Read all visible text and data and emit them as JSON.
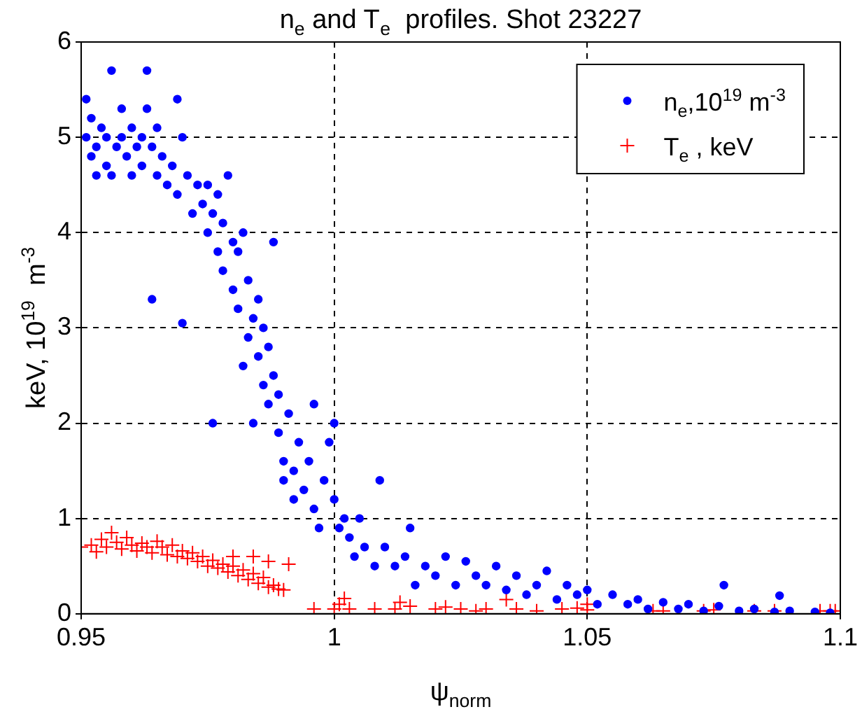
{
  "chart_data": {
    "type": "scatter",
    "title": "n$_{e}$ and T$_{e}$  profiles. Shot 23227",
    "xlabel": "ψ$_{norm}$",
    "ylabel": "keV, 10$^{19}$  m$^{-3}$",
    "xlim": [
      0.95,
      1.1
    ],
    "xticks": [
      0.95,
      1,
      1.05,
      1.1
    ],
    "ylim": [
      0,
      6
    ],
    "yticks": [
      0,
      1,
      2,
      3,
      4,
      5,
      6
    ],
    "grid": true,
    "legend": "top right",
    "series": [
      {
        "name": "n$_{e}$,10$^{19}$ m$^{-3}$",
        "color": "#0000ff",
        "marker": "circle",
        "x": [
          0.951,
          0.951,
          0.952,
          0.952,
          0.953,
          0.953,
          0.954,
          0.955,
          0.955,
          0.956,
          0.956,
          0.957,
          0.958,
          0.958,
          0.959,
          0.96,
          0.96,
          0.961,
          0.962,
          0.962,
          0.963,
          0.963,
          0.964,
          0.964,
          0.965,
          0.965,
          0.966,
          0.967,
          0.968,
          0.969,
          0.969,
          0.97,
          0.97,
          0.971,
          0.972,
          0.973,
          0.974,
          0.975,
          0.975,
          0.976,
          0.976,
          0.977,
          0.977,
          0.978,
          0.978,
          0.979,
          0.98,
          0.98,
          0.981,
          0.981,
          0.982,
          0.982,
          0.983,
          0.983,
          0.984,
          0.984,
          0.985,
          0.985,
          0.986,
          0.986,
          0.987,
          0.987,
          0.988,
          0.988,
          0.989,
          0.989,
          0.99,
          0.99,
          0.991,
          0.992,
          0.992,
          0.993,
          0.994,
          0.995,
          0.996,
          0.996,
          0.997,
          0.998,
          0.999,
          1.0,
          1.0,
          1.001,
          1.002,
          1.003,
          1.004,
          1.005,
          1.006,
          1.008,
          1.009,
          1.01,
          1.012,
          1.014,
          1.015,
          1.016,
          1.018,
          1.02,
          1.022,
          1.024,
          1.026,
          1.028,
          1.03,
          1.032,
          1.034,
          1.036,
          1.038,
          1.04,
          1.042,
          1.044,
          1.046,
          1.048,
          1.05,
          1.052,
          1.055,
          1.058,
          1.06,
          1.062,
          1.065,
          1.068,
          1.07,
          1.073,
          1.076,
          1.077,
          1.08,
          1.083,
          1.087,
          1.088,
          1.09,
          1.095,
          1.098
        ],
        "values": [
          5.4,
          5.0,
          4.8,
          5.2,
          4.6,
          4.9,
          5.1,
          4.7,
          5.0,
          5.7,
          4.6,
          4.9,
          5.3,
          5.0,
          4.8,
          4.6,
          5.1,
          4.9,
          4.7,
          5.0,
          5.7,
          5.3,
          3.3,
          4.9,
          5.1,
          4.6,
          4.8,
          4.5,
          4.7,
          5.4,
          4.4,
          3.05,
          5.0,
          4.6,
          4.2,
          4.5,
          4.3,
          4.0,
          4.5,
          2.0,
          4.2,
          4.4,
          3.8,
          4.1,
          3.6,
          4.6,
          3.9,
          3.4,
          3.8,
          3.2,
          4.0,
          2.6,
          3.5,
          2.9,
          3.1,
          2.0,
          2.7,
          3.3,
          3.0,
          2.4,
          2.2,
          2.8,
          3.9,
          2.5,
          1.9,
          2.3,
          1.4,
          1.6,
          2.1,
          1.5,
          1.2,
          1.8,
          1.3,
          1.6,
          1.1,
          2.2,
          0.9,
          1.4,
          1.8,
          1.2,
          2.0,
          0.9,
          1.0,
          0.8,
          0.6,
          1.0,
          0.7,
          0.5,
          1.4,
          0.7,
          0.5,
          0.6,
          0.9,
          0.3,
          0.5,
          0.4,
          0.6,
          0.3,
          0.55,
          0.4,
          0.3,
          0.5,
          0.25,
          0.4,
          0.2,
          0.3,
          0.45,
          0.15,
          0.3,
          0.2,
          0.25,
          0.1,
          0.2,
          0.1,
          0.15,
          0.05,
          0.12,
          0.05,
          0.1,
          0.03,
          0.08,
          0.3,
          0.03,
          0.05,
          0.02,
          0.19,
          0.03,
          0.02,
          0.01
        ]
      },
      {
        "name": "T$_{e}$ , keV",
        "color": "#ff0000",
        "marker": "cross",
        "x": [
          0.95,
          0.952,
          0.953,
          0.954,
          0.955,
          0.956,
          0.957,
          0.958,
          0.959,
          0.96,
          0.961,
          0.962,
          0.963,
          0.964,
          0.965,
          0.966,
          0.967,
          0.968,
          0.969,
          0.97,
          0.971,
          0.972,
          0.973,
          0.974,
          0.975,
          0.976,
          0.977,
          0.978,
          0.979,
          0.98,
          0.98,
          0.981,
          0.982,
          0.983,
          0.984,
          0.984,
          0.985,
          0.986,
          0.987,
          0.987,
          0.988,
          0.989,
          0.99,
          0.991,
          0.996,
          1.0,
          1.001,
          1.002,
          1.003,
          1.008,
          1.012,
          1.013,
          1.015,
          1.02,
          1.022,
          1.025,
          1.028,
          1.03,
          1.034,
          1.036,
          1.04,
          1.045,
          1.048,
          1.05,
          1.05,
          1.063,
          1.065,
          1.073,
          1.075,
          1.083,
          1.087,
          1.096,
          1.098,
          1.099
        ],
        "values": [
          0.7,
          0.72,
          0.65,
          0.78,
          0.7,
          0.85,
          0.75,
          0.68,
          0.8,
          0.72,
          0.66,
          0.74,
          0.7,
          0.64,
          0.76,
          0.7,
          0.62,
          0.72,
          0.6,
          0.66,
          0.58,
          0.64,
          0.55,
          0.6,
          0.5,
          0.56,
          0.48,
          0.52,
          0.44,
          0.5,
          0.6,
          0.4,
          0.46,
          0.36,
          0.42,
          0.6,
          0.32,
          0.38,
          0.28,
          0.55,
          0.3,
          0.26,
          0.25,
          0.52,
          0.05,
          0.05,
          0.1,
          0.16,
          0.05,
          0.05,
          0.05,
          0.12,
          0.08,
          0.05,
          0.07,
          0.05,
          0.03,
          0.05,
          0.15,
          0.05,
          0.03,
          0.05,
          0.06,
          0.04,
          0.1,
          0.03,
          0.03,
          0.03,
          0.04,
          0.03,
          0.03,
          0.03,
          0.03,
          0.03
        ]
      }
    ]
  }
}
